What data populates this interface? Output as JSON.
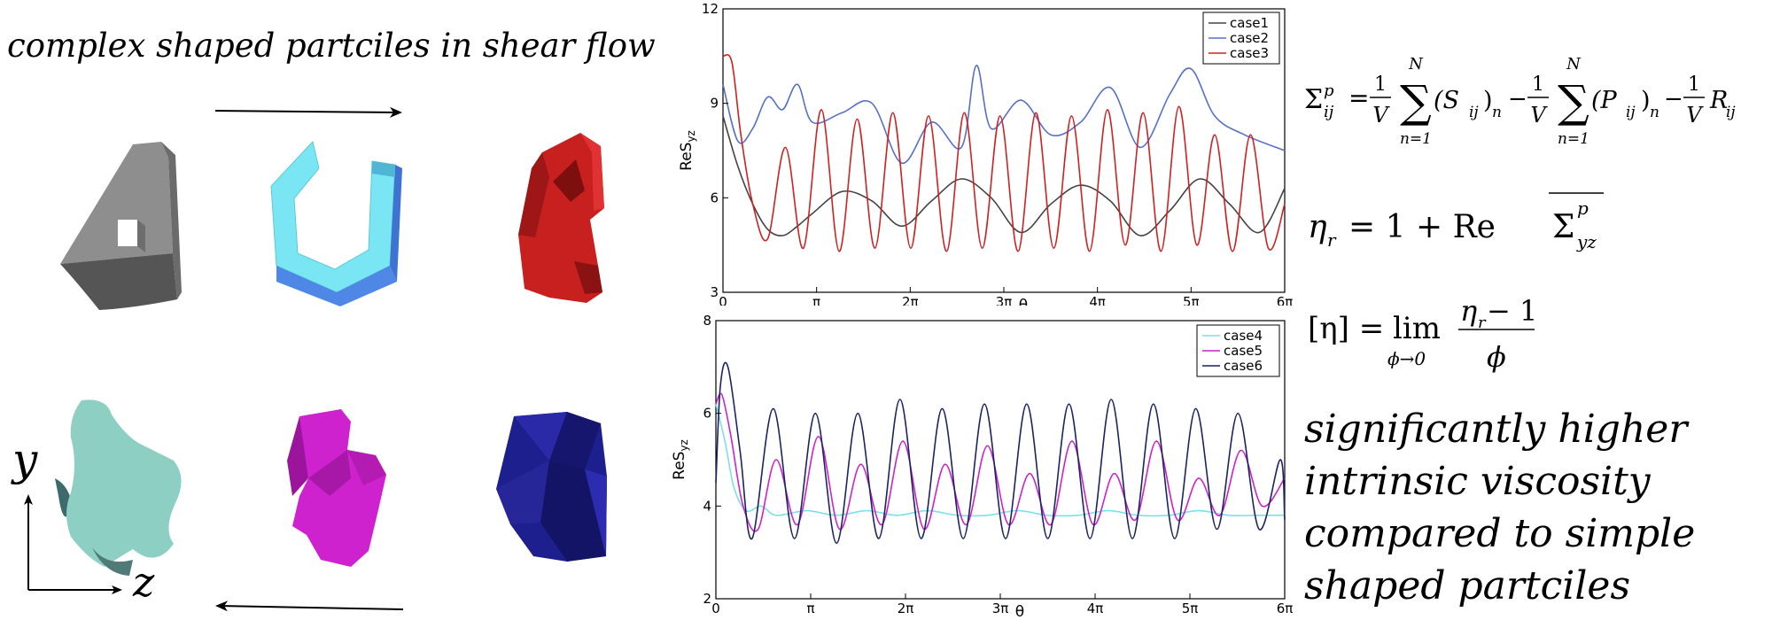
{
  "headline": "complex shaped  partciles in shear flow",
  "axes_labels": {
    "y": "y",
    "z": "z"
  },
  "equations": {
    "stress": {
      "lhs_main": "Σ",
      "lhs_sup": "p",
      "lhs_sub": "ij",
      "one": "1",
      "V": "V",
      "sum_top": "N",
      "sum_bottom": "n=1",
      "S_term": "(S",
      "S_sub": "ij",
      "S_close": ")",
      "S_n": "n",
      "P_term": "(P",
      "P_sub": "ij",
      "P_close": ")",
      "P_n": "n",
      "R_term": "R",
      "R_sub": "ij"
    },
    "relative_viscosity": {
      "eta": "η",
      "eta_sub": "r",
      "rhs": "= 1 + Re",
      "sigma": "Σ",
      "sigma_sup": "p",
      "sigma_sub": "yz"
    },
    "intrinsic_viscosity": {
      "lhs": "[η] =",
      "lim": "lim",
      "lim_sub": "ϕ→0",
      "num_eta": "η",
      "num_sub": "r",
      "num_rest": " − 1",
      "den": "ϕ"
    }
  },
  "conclusion": {
    "lines": [
      "significantly higher",
      "intrinsic viscosity",
      "compared to simple",
      "shaped partciles"
    ]
  },
  "chart_data": [
    {
      "type": "line",
      "ylabel_main": "Re",
      "ylabel_sym": "S",
      "ylabel_sub": "yz",
      "xlabel": "θ",
      "xlim": [
        0,
        18.85
      ],
      "ylim": [
        3,
        12
      ],
      "xticks": [
        0,
        3.1416,
        6.2832,
        9.4248,
        12.5664,
        15.708,
        18.8496
      ],
      "xtick_labels": [
        "0",
        "π",
        "2π",
        "3π",
        "4π",
        "5π",
        "6π"
      ],
      "yticks": [
        3,
        6,
        9,
        12
      ],
      "ytick_labels": [
        "3",
        "6",
        "9",
        "12"
      ],
      "legend_position": "top-right",
      "series": [
        {
          "name": "case1",
          "color": "#444444",
          "x": [
            0,
            0.5,
            1.0,
            1.5,
            2.0,
            2.5,
            3.0,
            4.0,
            5.0,
            6.0,
            7.0,
            8.0,
            9.0,
            10.0,
            11.0,
            12.0,
            13.0,
            14.0,
            15.0,
            16.0,
            17.0,
            18.0,
            18.85
          ],
          "y": [
            8.6,
            7.0,
            5.8,
            5.0,
            4.8,
            5.1,
            5.5,
            6.2,
            5.9,
            5.1,
            5.9,
            6.6,
            6.0,
            4.9,
            5.8,
            6.4,
            5.9,
            4.8,
            5.6,
            6.6,
            5.8,
            4.9,
            6.3
          ]
        },
        {
          "name": "case2",
          "color": "#5570c8",
          "x": [
            0,
            0.5,
            1.0,
            1.5,
            2.0,
            2.5,
            3.0,
            4.0,
            5.0,
            6.0,
            7.0,
            8.0,
            8.5,
            9.0,
            10.0,
            11.0,
            12.0,
            13.0,
            14.0,
            15.0,
            15.7,
            16.5,
            17.5,
            18.85
          ],
          "y": [
            9.6,
            7.8,
            8.2,
            9.2,
            8.8,
            9.6,
            8.4,
            8.7,
            9.0,
            7.1,
            8.4,
            7.6,
            10.2,
            8.2,
            9.1,
            8.0,
            8.4,
            9.5,
            7.6,
            9.3,
            10.1,
            8.6,
            8.0,
            7.5
          ]
        },
        {
          "name": "case3",
          "color": "#cc2222",
          "x": [
            0,
            0.3,
            0.6,
            1.0,
            1.5,
            2.1,
            2.7,
            3.3,
            3.9,
            4.5,
            5.1,
            5.7,
            6.3,
            6.9,
            7.5,
            8.1,
            8.7,
            9.3,
            9.9,
            10.5,
            11.1,
            11.7,
            12.3,
            12.9,
            13.5,
            14.1,
            14.7,
            15.3,
            15.9,
            16.5,
            17.1,
            17.7,
            18.3,
            18.85
          ],
          "y": [
            10.5,
            10.3,
            8.0,
            5.8,
            4.7,
            7.6,
            4.4,
            8.8,
            4.3,
            8.5,
            4.4,
            8.7,
            4.4,
            8.6,
            4.3,
            8.7,
            4.4,
            8.6,
            4.3,
            8.7,
            4.4,
            8.6,
            4.3,
            8.8,
            4.5,
            8.7,
            4.3,
            8.9,
            4.5,
            8.0,
            4.3,
            8.0,
            4.4,
            5.8
          ]
        }
      ]
    },
    {
      "type": "line",
      "ylabel_main": "Re",
      "ylabel_sym": "S",
      "ylabel_sub": "yz",
      "xlabel": "θ",
      "xlim": [
        0,
        18.85
      ],
      "ylim": [
        2,
        8
      ],
      "xticks": [
        0,
        3.1416,
        6.2832,
        9.4248,
        12.5664,
        15.708,
        18.8496
      ],
      "xtick_labels": [
        "0",
        "π",
        "2π",
        "3π",
        "4π",
        "5π",
        "6π"
      ],
      "yticks": [
        2,
        4,
        6,
        8
      ],
      "ytick_labels": [
        "2",
        "4",
        "6",
        "8"
      ],
      "legend_position": "top-right",
      "series": [
        {
          "name": "case4",
          "color": "#7ee0e6",
          "x": [
            0,
            0.3,
            0.6,
            1.0,
            1.5,
            2.0,
            3.0,
            4.0,
            5.0,
            6.0,
            7.0,
            8.0,
            9.0,
            10.0,
            11.0,
            12.0,
            13.0,
            14.0,
            15.0,
            16.0,
            17.0,
            18.0,
            18.85
          ],
          "y": [
            6.2,
            5.4,
            4.4,
            3.9,
            4.0,
            3.8,
            3.9,
            3.8,
            3.9,
            3.8,
            3.9,
            3.8,
            3.8,
            3.9,
            3.8,
            3.8,
            3.9,
            3.8,
            3.8,
            3.9,
            3.8,
            3.8,
            3.8
          ]
        },
        {
          "name": "case5",
          "color": "#cc22cc",
          "x": [
            0,
            0.2,
            0.5,
            0.9,
            1.4,
            2.0,
            2.7,
            3.4,
            4.1,
            4.8,
            5.5,
            6.2,
            6.9,
            7.6,
            8.3,
            9.0,
            9.7,
            10.4,
            11.1,
            11.8,
            12.5,
            13.2,
            13.9,
            14.6,
            15.3,
            16.0,
            16.7,
            17.4,
            18.1,
            18.85
          ],
          "y": [
            6.2,
            6.4,
            5.5,
            4.0,
            3.5,
            5.0,
            3.6,
            5.5,
            3.5,
            4.9,
            3.6,
            5.4,
            3.5,
            4.9,
            3.6,
            5.3,
            3.6,
            4.7,
            3.6,
            5.4,
            3.6,
            4.7,
            3.7,
            5.4,
            3.7,
            4.6,
            3.8,
            5.2,
            4.0,
            4.6
          ]
        },
        {
          "name": "case6",
          "color": "#1a2460",
          "x": [
            0,
            0.15,
            0.4,
            0.8,
            1.2,
            1.9,
            2.6,
            3.3,
            4.0,
            4.7,
            5.4,
            6.1,
            6.8,
            7.5,
            8.2,
            8.9,
            9.6,
            10.3,
            11.0,
            11.7,
            12.4,
            13.1,
            13.8,
            14.5,
            15.2,
            15.9,
            16.6,
            17.3,
            18.0,
            18.7,
            18.85
          ],
          "y": [
            4.5,
            6.6,
            7.0,
            5.2,
            3.3,
            6.1,
            3.3,
            6.0,
            3.2,
            6.0,
            3.3,
            6.3,
            3.3,
            6.1,
            3.3,
            6.2,
            3.3,
            6.2,
            3.3,
            6.2,
            3.3,
            6.3,
            3.3,
            6.2,
            3.3,
            6.1,
            3.5,
            6.0,
            3.5,
            5.0,
            3.7
          ]
        }
      ]
    }
  ]
}
